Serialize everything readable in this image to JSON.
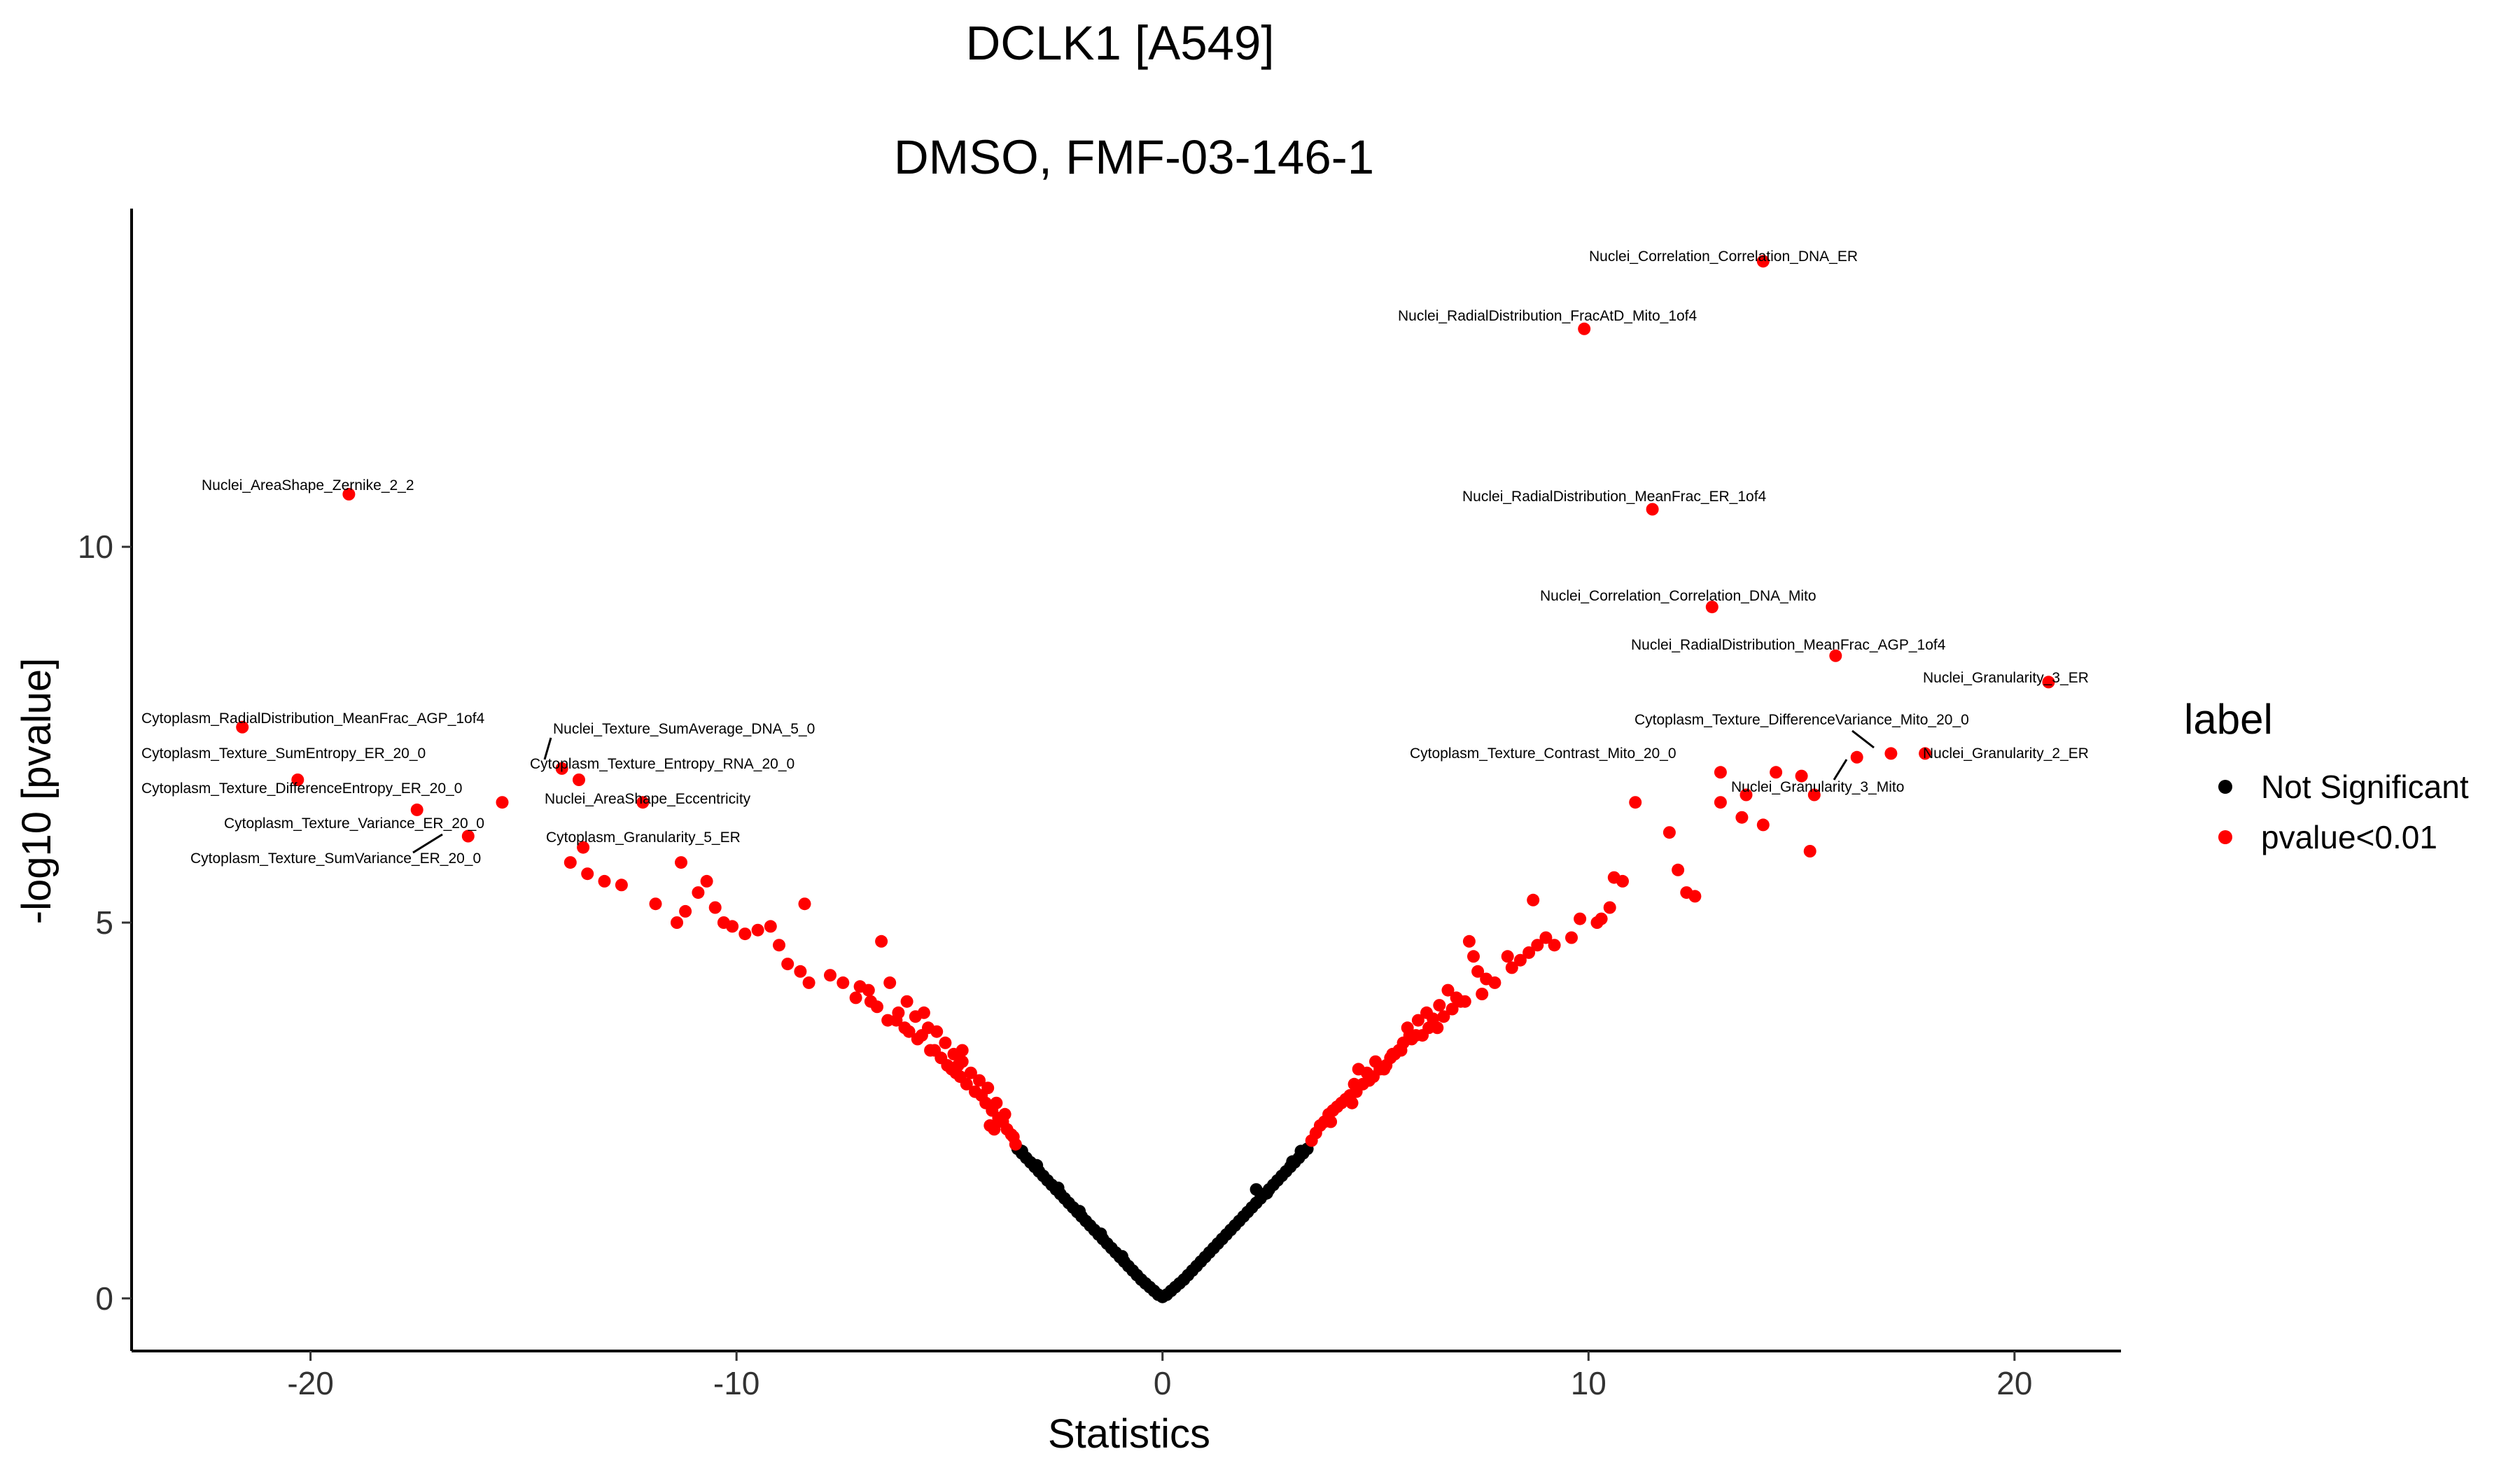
{
  "colors": {
    "significant": "#FF0000",
    "not_significant": "#000000",
    "axis": "#000000",
    "background": "#FFFFFF"
  },
  "chart_data": {
    "type": "scatter",
    "title": [
      "DCLK1 [A549]",
      "DMSO, FMF-03-146-1"
    ],
    "xlabel": "Statistics",
    "ylabel": "-log10 [pvalue]",
    "xlim": [
      -24.2,
      22.5
    ],
    "ylim": [
      -0.7,
      14.5
    ],
    "xticks": [
      -20,
      -10,
      0,
      10,
      20
    ],
    "yticks": [
      0,
      5,
      10
    ],
    "xtick_labels": [
      "-20",
      "-10",
      "0",
      "10",
      "20"
    ],
    "ytick_labels": [
      "0",
      "5",
      "10"
    ],
    "grid": false,
    "legend": {
      "title": "label",
      "position": "right",
      "entries": [
        {
          "name": "Not Significant",
          "color": "#000000"
        },
        {
          "name": "pvalue<0.01",
          "color": "#FF0000"
        }
      ]
    },
    "series": [
      {
        "name": "Not Significant",
        "color": "#000000",
        "points": [
          [
            -3.4,
            1.99
          ],
          [
            -3.3,
            1.93
          ],
          [
            -3.2,
            1.87
          ],
          [
            -3.1,
            1.81
          ],
          [
            -3.0,
            1.75
          ],
          [
            -2.9,
            1.69
          ],
          [
            -2.8,
            1.63
          ],
          [
            -2.7,
            1.57
          ],
          [
            -2.6,
            1.51
          ],
          [
            -2.5,
            1.45
          ],
          [
            -2.4,
            1.39
          ],
          [
            -2.3,
            1.33
          ],
          [
            -2.2,
            1.27
          ],
          [
            -2.1,
            1.21
          ],
          [
            -2.0,
            1.15
          ],
          [
            -1.9,
            1.09
          ],
          [
            -1.8,
            1.03
          ],
          [
            -1.7,
            0.97
          ],
          [
            -1.6,
            0.91
          ],
          [
            -1.5,
            0.85
          ],
          [
            -1.4,
            0.79
          ],
          [
            -1.3,
            0.73
          ],
          [
            -1.2,
            0.67
          ],
          [
            -1.1,
            0.61
          ],
          [
            -1.0,
            0.55
          ],
          [
            -0.9,
            0.49
          ],
          [
            -0.8,
            0.43
          ],
          [
            -0.7,
            0.37
          ],
          [
            -0.6,
            0.31
          ],
          [
            -0.5,
            0.25
          ],
          [
            -0.4,
            0.2
          ],
          [
            -0.3,
            0.15
          ],
          [
            -0.2,
            0.1
          ],
          [
            -0.1,
            0.05
          ],
          [
            0.0,
            0.02
          ],
          [
            0.1,
            0.05
          ],
          [
            0.2,
            0.1
          ],
          [
            0.3,
            0.15
          ],
          [
            0.4,
            0.2
          ],
          [
            0.5,
            0.25
          ],
          [
            0.6,
            0.31
          ],
          [
            0.7,
            0.37
          ],
          [
            0.8,
            0.43
          ],
          [
            0.9,
            0.49
          ],
          [
            1.0,
            0.55
          ],
          [
            1.1,
            0.61
          ],
          [
            1.2,
            0.67
          ],
          [
            1.3,
            0.73
          ],
          [
            1.4,
            0.79
          ],
          [
            1.5,
            0.85
          ],
          [
            1.6,
            0.91
          ],
          [
            1.7,
            0.97
          ],
          [
            1.8,
            1.03
          ],
          [
            1.9,
            1.09
          ],
          [
            2.0,
            1.15
          ],
          [
            2.1,
            1.21
          ],
          [
            2.2,
            1.27
          ],
          [
            2.3,
            1.33
          ],
          [
            2.4,
            1.39
          ],
          [
            2.5,
            1.45
          ],
          [
            2.6,
            1.51
          ],
          [
            2.7,
            1.57
          ],
          [
            2.8,
            1.63
          ],
          [
            2.9,
            1.69
          ],
          [
            3.0,
            1.75
          ],
          [
            3.1,
            1.81
          ],
          [
            3.2,
            1.87
          ],
          [
            3.3,
            1.93
          ],
          [
            3.4,
            1.99
          ],
          [
            -3.3,
            1.96
          ],
          [
            -2.95,
            1.77
          ],
          [
            -2.45,
            1.47
          ],
          [
            -1.95,
            1.16
          ],
          [
            -1.45,
            0.86
          ],
          [
            -0.95,
            0.56
          ],
          [
            2.2,
            1.45
          ],
          [
            2.45,
            1.4
          ],
          [
            3.25,
            1.96
          ],
          [
            3.05,
            1.82
          ]
        ]
      },
      {
        "name": "pvalue<0.01",
        "color": "#FF0000",
        "points": [
          [
            -19.1,
            10.7
          ],
          [
            -21.6,
            7.6
          ],
          [
            -20.3,
            6.9
          ],
          [
            -17.5,
            6.5
          ],
          [
            -15.5,
            6.6
          ],
          [
            -16.3,
            6.15
          ],
          [
            -14.1,
            7.05
          ],
          [
            -13.7,
            6.9
          ],
          [
            -12.2,
            6.6
          ],
          [
            -13.6,
            6.0
          ],
          [
            -13.9,
            5.8
          ],
          [
            -11.3,
            5.8
          ],
          [
            -13.5,
            5.65
          ],
          [
            -13.1,
            5.55
          ],
          [
            -12.7,
            5.5
          ],
          [
            -11.9,
            5.25
          ],
          [
            -11.4,
            5.0
          ],
          [
            -11.2,
            5.15
          ],
          [
            -10.9,
            5.4
          ],
          [
            -10.7,
            5.55
          ],
          [
            -10.5,
            5.2
          ],
          [
            -10.3,
            5.0
          ],
          [
            -10.1,
            4.95
          ],
          [
            -9.8,
            4.85
          ],
          [
            -9.5,
            4.9
          ],
          [
            -9.2,
            4.95
          ],
          [
            -9.0,
            4.7
          ],
          [
            -8.8,
            4.45
          ],
          [
            -8.5,
            4.35
          ],
          [
            -8.3,
            4.2
          ],
          [
            -8.4,
            5.25
          ],
          [
            -7.8,
            4.3
          ],
          [
            -7.5,
            4.2
          ],
          [
            -7.2,
            4.0
          ],
          [
            -6.9,
            4.1
          ],
          [
            -6.6,
            4.75
          ],
          [
            -6.4,
            4.2
          ],
          [
            -6.2,
            3.8
          ],
          [
            -6.0,
            3.95
          ],
          [
            -5.8,
            3.75
          ],
          [
            -5.5,
            3.6
          ],
          [
            -5.3,
            3.55
          ],
          [
            -5.1,
            3.4
          ],
          [
            -4.9,
            3.25
          ],
          [
            -4.7,
            3.15
          ],
          [
            -4.5,
            3.0
          ],
          [
            -4.3,
            2.9
          ],
          [
            -4.1,
            2.8
          ],
          [
            -3.9,
            2.6
          ],
          [
            -3.7,
            2.45
          ],
          [
            -3.5,
            2.15
          ],
          [
            -7.1,
            4.15
          ],
          [
            -6.85,
            3.95
          ],
          [
            -6.7,
            3.88
          ],
          [
            -6.45,
            3.7
          ],
          [
            -6.25,
            3.7
          ],
          [
            -6.05,
            3.6
          ],
          [
            -5.95,
            3.55
          ],
          [
            -5.75,
            3.45
          ],
          [
            -5.65,
            3.5
          ],
          [
            -5.45,
            3.3
          ],
          [
            -5.35,
            3.3
          ],
          [
            -5.2,
            3.2
          ],
          [
            -5.05,
            3.1
          ],
          [
            -4.95,
            3.05
          ],
          [
            -4.85,
            3.0
          ],
          [
            -4.75,
            2.95
          ],
          [
            -4.6,
            2.85
          ],
          [
            -4.4,
            2.75
          ],
          [
            -4.25,
            2.7
          ],
          [
            -4.15,
            2.6
          ],
          [
            -4.0,
            2.5
          ],
          [
            -3.85,
            2.4
          ],
          [
            -3.75,
            2.35
          ],
          [
            -3.65,
            2.25
          ],
          [
            -3.55,
            2.18
          ],
          [
            -3.45,
            2.05
          ],
          [
            -4.7,
            3.3
          ],
          [
            -5.6,
            3.8
          ],
          [
            -4.8,
            3.1
          ],
          [
            -4.05,
            2.3
          ],
          [
            -3.95,
            2.25
          ],
          [
            14.1,
            13.8
          ],
          [
            9.9,
            12.9
          ],
          [
            11.5,
            10.5
          ],
          [
            12.9,
            9.2
          ],
          [
            15.8,
            8.55
          ],
          [
            20.8,
            8.2
          ],
          [
            17.1,
            7.25
          ],
          [
            17.9,
            7.25
          ],
          [
            16.3,
            7.2
          ],
          [
            14.4,
            7.0
          ],
          [
            13.1,
            7.0
          ],
          [
            13.7,
            6.7
          ],
          [
            15.3,
            6.7
          ],
          [
            11.1,
            6.6
          ],
          [
            13.1,
            6.6
          ],
          [
            13.6,
            6.4
          ],
          [
            14.1,
            6.3
          ],
          [
            15.0,
            6.95
          ],
          [
            15.2,
            5.95
          ],
          [
            11.9,
            6.2
          ],
          [
            12.1,
            5.7
          ],
          [
            12.3,
            5.4
          ],
          [
            12.5,
            5.35
          ],
          [
            10.8,
            5.55
          ],
          [
            10.6,
            5.6
          ],
          [
            10.5,
            5.2
          ],
          [
            10.3,
            5.05
          ],
          [
            10.2,
            5.0
          ],
          [
            9.8,
            5.05
          ],
          [
            9.6,
            4.8
          ],
          [
            9.2,
            4.7
          ],
          [
            9.0,
            4.8
          ],
          [
            8.8,
            4.7
          ],
          [
            8.7,
            5.3
          ],
          [
            8.6,
            4.6
          ],
          [
            8.4,
            4.5
          ],
          [
            8.2,
            4.4
          ],
          [
            7.8,
            4.2
          ],
          [
            7.5,
            4.05
          ],
          [
            7.4,
            4.35
          ],
          [
            7.3,
            4.55
          ],
          [
            7.2,
            4.75
          ],
          [
            6.9,
            4.0
          ],
          [
            6.7,
            4.1
          ],
          [
            6.5,
            3.9
          ],
          [
            6.2,
            3.8
          ],
          [
            6.0,
            3.7
          ],
          [
            5.8,
            3.5
          ],
          [
            5.6,
            3.3
          ],
          [
            5.4,
            3.25
          ],
          [
            5.2,
            3.05
          ],
          [
            5.0,
            3.15
          ],
          [
            4.8,
            3.0
          ],
          [
            4.5,
            2.85
          ],
          [
            4.3,
            2.65
          ],
          [
            4.1,
            2.55
          ],
          [
            3.9,
            2.45
          ],
          [
            3.7,
            2.3
          ],
          [
            3.5,
            2.1
          ],
          [
            4.6,
            3.05
          ],
          [
            5.75,
            3.6
          ],
          [
            6.1,
            3.5
          ],
          [
            7.6,
            4.25
          ],
          [
            8.1,
            4.55
          ],
          [
            7.0,
            3.95
          ],
          [
            6.8,
            3.85
          ],
          [
            6.6,
            3.75
          ],
          [
            6.35,
            3.72
          ],
          [
            6.25,
            3.6
          ],
          [
            5.95,
            3.5
          ],
          [
            5.85,
            3.45
          ],
          [
            5.65,
            3.4
          ],
          [
            5.55,
            3.3
          ],
          [
            5.35,
            3.2
          ],
          [
            5.25,
            3.1
          ],
          [
            5.1,
            3.05
          ],
          [
            4.95,
            2.95
          ],
          [
            4.85,
            2.9
          ],
          [
            4.7,
            2.85
          ],
          [
            4.55,
            2.75
          ],
          [
            4.4,
            2.7
          ],
          [
            4.2,
            2.6
          ],
          [
            4.0,
            2.5
          ],
          [
            3.8,
            2.35
          ],
          [
            3.6,
            2.2
          ],
          [
            4.45,
            2.6
          ],
          [
            3.95,
            2.35
          ],
          [
            5.45,
            3.25
          ],
          [
            6.45,
            3.6
          ],
          [
            7.1,
            3.95
          ]
        ]
      }
    ],
    "annotations": [
      {
        "text": "Nuclei_AreaShape_Zernike_2_2",
        "x": -19.1,
        "y": 10.7
      },
      {
        "text": "Cytoplasm_RadialDistribution_MeanFrac_AGP_1of4",
        "x": -21.6,
        "y": 7.6
      },
      {
        "text": "Cytoplasm_Texture_SumEntropy_ER_20_0",
        "x": -20.3,
        "y": 6.9
      },
      {
        "text": "Cytoplasm_Texture_DifferenceEntropy_ER_20_0",
        "x": -17.5,
        "y": 6.5
      },
      {
        "text": "Cytoplasm_Texture_Variance_ER_20_0",
        "x": -16.3,
        "y": 6.15
      },
      {
        "text": "Cytoplasm_Texture_SumVariance_ER_20_0",
        "x": -16.3,
        "y": 6.15
      },
      {
        "text": "Nuclei_Texture_SumAverage_DNA_5_0",
        "x": -14.1,
        "y": 7.05
      },
      {
        "text": "Cytoplasm_Texture_Entropy_RNA_20_0",
        "x": -13.7,
        "y": 6.9
      },
      {
        "text": "Nuclei_AreaShape_Eccentricity",
        "x": -12.2,
        "y": 6.6
      },
      {
        "text": "Cytoplasm_Granularity_5_ER",
        "x": -13.6,
        "y": 6.0
      },
      {
        "text": "Nuclei_Correlation_Correlation_DNA_ER",
        "x": 14.1,
        "y": 13.8
      },
      {
        "text": "Nuclei_RadialDistribution_FracAtD_Mito_1of4",
        "x": 9.9,
        "y": 12.9
      },
      {
        "text": "Nuclei_RadialDistribution_MeanFrac_ER_1of4",
        "x": 11.5,
        "y": 10.5
      },
      {
        "text": "Nuclei_Correlation_Correlation_DNA_Mito",
        "x": 12.9,
        "y": 9.2
      },
      {
        "text": "Nuclei_RadialDistribution_MeanFrac_AGP_1of4",
        "x": 15.8,
        "y": 8.55
      },
      {
        "text": "Nuclei_Granularity_3_ER",
        "x": 20.8,
        "y": 8.2
      },
      {
        "text": "Cytoplasm_Texture_DifferenceVariance_Mito_20_0",
        "x": 17.1,
        "y": 7.25
      },
      {
        "text": "Cytoplasm_Texture_Contrast_Mito_20_0",
        "x": 13.1,
        "y": 7.0
      },
      {
        "text": "Nuclei_Granularity_2_ER",
        "x": 17.9,
        "y": 7.25
      },
      {
        "text": "Nuclei_Granularity_3_Mito",
        "x": 16.3,
        "y": 7.2
      }
    ]
  }
}
